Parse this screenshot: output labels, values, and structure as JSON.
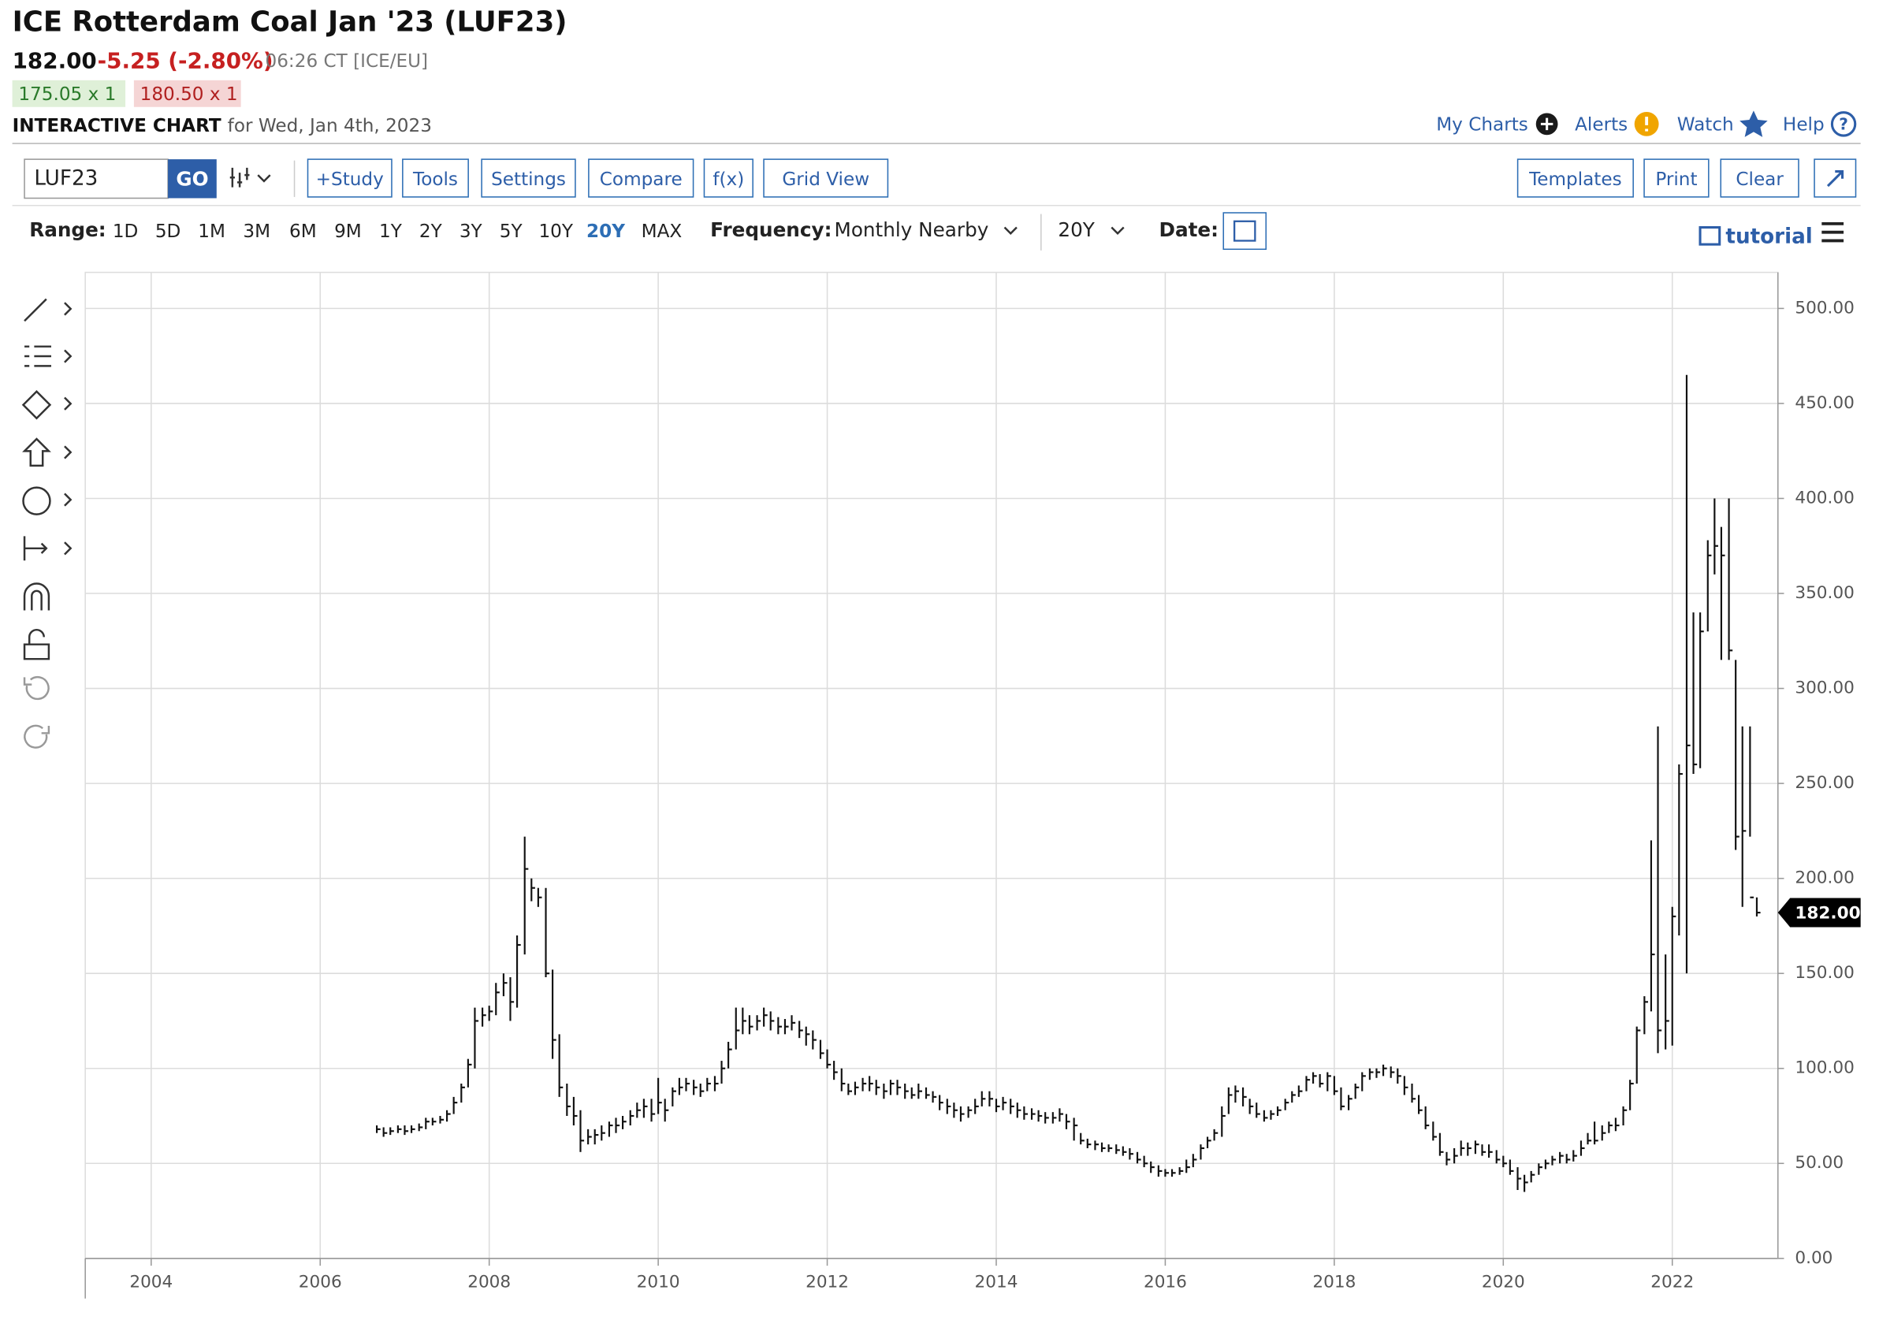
{
  "header": {
    "title": "ICE Rotterdam Coal Jan '23 (LUF23)",
    "last": "182.00",
    "change": "-5.25 (-2.80%)",
    "time": "06:26 CT [ICE/EU]",
    "bid": "175.05 x 1",
    "ask": "180.50 x 1",
    "section": "INTERACTIVE CHART",
    "date": "for Wed, Jan 4th, 2023"
  },
  "links": [
    "My Charts",
    "Alerts",
    "Watch",
    "Help"
  ],
  "toolbar": {
    "symbol": "LUF23",
    "go": "GO",
    "buttons": [
      "+Study",
      "Tools",
      "Settings",
      "Compare",
      "f(x)",
      "Grid View"
    ],
    "right_buttons": [
      "Templates",
      "Print",
      "Clear"
    ]
  },
  "range": {
    "label": "Range:",
    "options": [
      "1D",
      "5D",
      "1M",
      "3M",
      "6M",
      "9M",
      "1Y",
      "2Y",
      "3Y",
      "5Y",
      "10Y",
      "20Y",
      "MAX"
    ],
    "selected": "20Y",
    "frequency_label": "Frequency:",
    "frequency": "Monthly Nearby",
    "period": "20Y",
    "date_label": "Date:",
    "tutorial": "tutorial"
  },
  "chart_data": {
    "type": "hlc",
    "color": "#111111",
    "grid": true,
    "xlim": [
      2003.22,
      2023.25
    ],
    "xticks": [
      2004,
      2006,
      2008,
      2010,
      2012,
      2014,
      2016,
      2018,
      2020,
      2022
    ],
    "ylim": [
      0,
      519
    ],
    "yticks": [
      {
        "value": 0,
        "label": "0.00"
      },
      {
        "value": 50,
        "label": "50.00"
      },
      {
        "value": 100,
        "label": "100.00"
      },
      {
        "value": 150,
        "label": "150.00"
      },
      {
        "value": 200,
        "label": "200.00"
      },
      {
        "value": 250,
        "label": "250.00"
      },
      {
        "value": 300,
        "label": "300.00"
      },
      {
        "value": 350,
        "label": "350.00"
      },
      {
        "value": 400,
        "label": "400.00"
      },
      {
        "value": 450,
        "label": "450.00"
      },
      {
        "value": 500,
        "label": "500.00"
      }
    ],
    "x": [
      2006.67,
      2006.75,
      2006.83,
      2006.92,
      2007,
      2007.08,
      2007.17,
      2007.25,
      2007.33,
      2007.42,
      2007.5,
      2007.58,
      2007.67,
      2007.75,
      2007.83,
      2007.92,
      2008,
      2008.08,
      2008.17,
      2008.25,
      2008.33,
      2008.42,
      2008.5,
      2008.58,
      2008.67,
      2008.75,
      2008.83,
      2008.92,
      2009,
      2009.08,
      2009.17,
      2009.25,
      2009.33,
      2009.42,
      2009.5,
      2009.58,
      2009.67,
      2009.75,
      2009.83,
      2009.92,
      2010,
      2010.08,
      2010.17,
      2010.25,
      2010.33,
      2010.42,
      2010.5,
      2010.58,
      2010.67,
      2010.75,
      2010.83,
      2010.92,
      2011,
      2011.08,
      2011.17,
      2011.25,
      2011.33,
      2011.42,
      2011.5,
      2011.58,
      2011.67,
      2011.75,
      2011.83,
      2011.92,
      2012,
      2012.08,
      2012.17,
      2012.25,
      2012.33,
      2012.42,
      2012.5,
      2012.58,
      2012.67,
      2012.75,
      2012.83,
      2012.92,
      2013,
      2013.08,
      2013.17,
      2013.25,
      2013.33,
      2013.42,
      2013.5,
      2013.58,
      2013.67,
      2013.75,
      2013.83,
      2013.92,
      2014,
      2014.08,
      2014.17,
      2014.25,
      2014.33,
      2014.42,
      2014.5,
      2014.58,
      2014.67,
      2014.75,
      2014.83,
      2014.92,
      2015,
      2015.08,
      2015.17,
      2015.25,
      2015.33,
      2015.42,
      2015.5,
      2015.58,
      2015.67,
      2015.75,
      2015.83,
      2015.92,
      2016,
      2016.08,
      2016.17,
      2016.25,
      2016.33,
      2016.42,
      2016.5,
      2016.58,
      2016.67,
      2016.75,
      2016.83,
      2016.92,
      2017,
      2017.08,
      2017.17,
      2017.25,
      2017.33,
      2017.42,
      2017.5,
      2017.58,
      2017.67,
      2017.75,
      2017.83,
      2017.92,
      2018,
      2018.08,
      2018.17,
      2018.25,
      2018.33,
      2018.42,
      2018.5,
      2018.58,
      2018.67,
      2018.75,
      2018.83,
      2018.92,
      2019,
      2019.08,
      2019.17,
      2019.25,
      2019.33,
      2019.42,
      2019.5,
      2019.58,
      2019.67,
      2019.75,
      2019.83,
      2019.92,
      2020,
      2020.08,
      2020.17,
      2020.25,
      2020.33,
      2020.42,
      2020.5,
      2020.58,
      2020.67,
      2020.75,
      2020.83,
      2020.92,
      2021,
      2021.08,
      2021.17,
      2021.25,
      2021.33,
      2021.42,
      2021.5,
      2021.58,
      2021.67,
      2021.75,
      2021.83,
      2021.92,
      2022,
      2022.08,
      2022.17,
      2022.25,
      2022.33,
      2022.42,
      2022.5,
      2022.58,
      2022.67,
      2022.75,
      2022.83,
      2022.92,
      2023
    ],
    "high": [
      70,
      69,
      69,
      70,
      70,
      70,
      71,
      74,
      74,
      75,
      78,
      85,
      92,
      105,
      132,
      132,
      133,
      145,
      150,
      148,
      170,
      222,
      200,
      195,
      195,
      152,
      118,
      92,
      85,
      78,
      68,
      68,
      70,
      72,
      74,
      75,
      78,
      82,
      84,
      84,
      95,
      84,
      90,
      95,
      95,
      94,
      92,
      95,
      96,
      104,
      114,
      132,
      132,
      128,
      128,
      132,
      130,
      127,
      126,
      128,
      125,
      122,
      120,
      115,
      110,
      104,
      100,
      92,
      93,
      95,
      96,
      94,
      92,
      94,
      94,
      92,
      90,
      92,
      90,
      88,
      86,
      84,
      82,
      80,
      80,
      84,
      88,
      88,
      84,
      85,
      84,
      82,
      80,
      79,
      78,
      77,
      77,
      79,
      76,
      74,
      66,
      63,
      62,
      61,
      60,
      60,
      59,
      58,
      56,
      54,
      51,
      49,
      47,
      47,
      48,
      52,
      55,
      60,
      64,
      68,
      80,
      90,
      91,
      90,
      84,
      82,
      78,
      78,
      80,
      84,
      88,
      91,
      96,
      98,
      97,
      98,
      96,
      90,
      86,
      92,
      98,
      100,
      100,
      102,
      101,
      100,
      96,
      92,
      86,
      80,
      72,
      66,
      56,
      58,
      62,
      61,
      62,
      60,
      60,
      57,
      54,
      52,
      48,
      44,
      46,
      50,
      52,
      54,
      56,
      55,
      57,
      62,
      66,
      72,
      70,
      72,
      74,
      80,
      94,
      122,
      138,
      220,
      280,
      160,
      185,
      260,
      465,
      340,
      340,
      378,
      400,
      385,
      400,
      315,
      280,
      280,
      190
    ],
    "low": [
      66,
      64,
      65,
      66,
      65,
      66,
      67,
      68,
      70,
      71,
      72,
      76,
      82,
      90,
      100,
      122,
      125,
      128,
      138,
      125,
      132,
      160,
      188,
      185,
      148,
      105,
      85,
      75,
      70,
      56,
      60,
      60,
      62,
      64,
      66,
      68,
      70,
      74,
      74,
      72,
      76,
      72,
      80,
      86,
      88,
      86,
      85,
      88,
      88,
      92,
      100,
      110,
      118,
      118,
      120,
      122,
      120,
      118,
      118,
      120,
      116,
      112,
      110,
      105,
      100,
      94,
      88,
      86,
      86,
      88,
      88,
      86,
      84,
      86,
      86,
      84,
      84,
      84,
      84,
      82,
      78,
      76,
      74,
      72,
      74,
      76,
      80,
      80,
      77,
      78,
      76,
      74,
      73,
      73,
      72,
      71,
      71,
      72,
      68,
      62,
      60,
      58,
      57,
      56,
      56,
      55,
      54,
      52,
      50,
      48,
      45,
      43,
      43,
      43,
      44,
      45,
      48,
      52,
      58,
      62,
      64,
      76,
      82,
      80,
      76,
      74,
      72,
      73,
      75,
      78,
      82,
      85,
      88,
      92,
      90,
      88,
      86,
      78,
      78,
      84,
      88,
      94,
      95,
      96,
      95,
      92,
      86,
      82,
      76,
      68,
      62,
      54,
      49,
      50,
      54,
      54,
      55,
      54,
      53,
      50,
      48,
      44,
      36,
      35,
      40,
      44,
      47,
      49,
      50,
      50,
      51,
      54,
      60,
      60,
      62,
      66,
      67,
      70,
      78,
      92,
      118,
      130,
      108,
      110,
      112,
      170,
      150,
      255,
      258,
      330,
      360,
      315,
      315,
      215,
      185,
      222,
      180
    ],
    "close": [
      68,
      66,
      67,
      68,
      67,
      68,
      69,
      72,
      72,
      73,
      76,
      82,
      90,
      102,
      125,
      128,
      130,
      140,
      145,
      135,
      165,
      205,
      195,
      190,
      150,
      115,
      90,
      80,
      75,
      62,
      64,
      65,
      66,
      70,
      70,
      72,
      75,
      78,
      80,
      76,
      82,
      78,
      88,
      90,
      92,
      90,
      88,
      92,
      92,
      100,
      110,
      120,
      125,
      122,
      125,
      128,
      125,
      122,
      122,
      124,
      120,
      118,
      115,
      108,
      102,
      98,
      92,
      88,
      90,
      92,
      92,
      90,
      88,
      92,
      90,
      88,
      86,
      88,
      86,
      85,
      82,
      80,
      78,
      76,
      78,
      80,
      84,
      84,
      80,
      82,
      80,
      78,
      76,
      76,
      75,
      74,
      74,
      76,
      72,
      70,
      62,
      60,
      60,
      58,
      58,
      57,
      56,
      55,
      52,
      50,
      48,
      46,
      45,
      45,
      46,
      48,
      52,
      58,
      62,
      66,
      75,
      86,
      88,
      85,
      80,
      76,
      74,
      76,
      78,
      82,
      86,
      88,
      94,
      96,
      92,
      96,
      88,
      80,
      84,
      90,
      96,
      98,
      98,
      100,
      98,
      96,
      90,
      84,
      78,
      70,
      64,
      56,
      52,
      54,
      58,
      58,
      60,
      56,
      56,
      52,
      50,
      46,
      42,
      40,
      44,
      48,
      50,
      52,
      54,
      52,
      54,
      58,
      62,
      62,
      66,
      70,
      70,
      78,
      92,
      120,
      135,
      160,
      120,
      125,
      180,
      255,
      270,
      260,
      330,
      370,
      375,
      370,
      320,
      222,
      225,
      190,
      182
    ]
  }
}
